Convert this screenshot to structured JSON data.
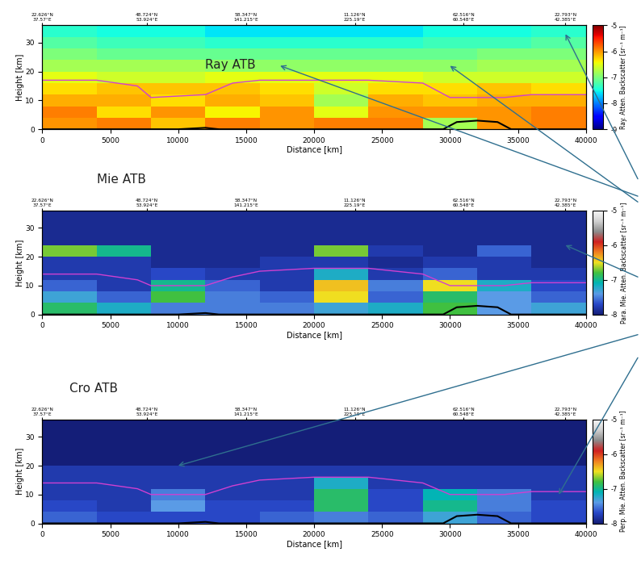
{
  "chart_data": [
    {
      "type": "heatmap",
      "title": "Ray ATB",
      "xlabel": "Distance [km]",
      "ylabel": "Height [km]",
      "xlim": [
        0,
        40000
      ],
      "xticks": [
        0,
        5000,
        10000,
        15000,
        20000,
        25000,
        30000,
        35000,
        40000
      ],
      "ylim": [
        0,
        36
      ],
      "yticks": [
        0,
        10,
        20,
        30
      ],
      "top_ticks": [
        {
          "value": 0,
          "label": "22.626°N\n37.57°E"
        },
        {
          "value": 7700,
          "label": "48.724°N\n53.924°E"
        },
        {
          "value": 15000,
          "label": "58.347°N\n141.215°E"
        },
        {
          "value": 23000,
          "label": "11.126°N\n225.19°E"
        },
        {
          "value": 31000,
          "label": "62.516°N\n60.548°E"
        },
        {
          "value": 38500,
          "label": "22.793°N\n42.385°E"
        }
      ],
      "x_edges": [
        0,
        4000,
        8000,
        12000,
        16000,
        20000,
        24000,
        28000,
        32000,
        36000,
        40000
      ],
      "y_edges": [
        0,
        4,
        8,
        12,
        16,
        20,
        24,
        28,
        32,
        36
      ],
      "cells": [
        [
          -6.0,
          -5.9,
          -6.2,
          -5.9,
          -6.0,
          -5.9,
          -5.9,
          -6.8,
          -6.0,
          -5.9
        ],
        [
          -5.9,
          -6.3,
          -6.0,
          -6.4,
          -6.0,
          -6.5,
          -6.0,
          -6.0,
          -6.0,
          -5.9
        ],
        [
          -6.1,
          -6.1,
          -6.3,
          -6.1,
          -6.2,
          -6.8,
          -6.1,
          -6.2,
          -6.1,
          -6.1
        ],
        [
          -6.3,
          -6.2,
          -6.2,
          -6.2,
          -6.3,
          -6.6,
          -6.3,
          -6.3,
          -6.2,
          -6.3
        ],
        [
          -6.5,
          -6.6,
          -6.6,
          -6.5,
          -6.5,
          -6.5,
          -6.5,
          -6.6,
          -6.6,
          -6.6
        ],
        [
          -6.8,
          -6.8,
          -6.8,
          -6.9,
          -6.9,
          -6.9,
          -6.9,
          -6.9,
          -6.8,
          -6.8
        ],
        [
          -7.0,
          -7.1,
          -7.1,
          -7.1,
          -7.1,
          -7.1,
          -7.1,
          -7.1,
          -7.0,
          -7.0
        ],
        [
          -7.2,
          -7.3,
          -7.3,
          -7.4,
          -7.4,
          -7.4,
          -7.4,
          -7.3,
          -7.3,
          -7.2
        ],
        [
          -7.4,
          -7.5,
          -7.5,
          -7.6,
          -7.6,
          -7.6,
          -7.6,
          -7.5,
          -7.5,
          -7.4
        ]
      ],
      "colorbar": {
        "label": "Ray. Atten. Backscatter [sr⁻¹ m⁻¹]",
        "range": [
          -9,
          -5
        ],
        "ticks": [
          -9,
          -8,
          -7,
          -6,
          -5
        ]
      },
      "tropopause": {
        "x": [
          0,
          4000,
          7000,
          8000,
          12000,
          14000,
          16000,
          20000,
          24000,
          28000,
          30000,
          34000,
          36000,
          40000
        ],
        "y": [
          17,
          17,
          15,
          11,
          12,
          16,
          17,
          17,
          17,
          16,
          11,
          11,
          12,
          12
        ],
        "color": "#d040d0"
      },
      "surface": {
        "x": [
          0,
          10000,
          12000,
          13000,
          29500,
          30500,
          32000,
          33500,
          34500,
          40000
        ],
        "y": [
          0,
          0,
          0.5,
          0,
          0,
          2.5,
          3,
          2.5,
          0,
          0
        ],
        "color": "#000000"
      }
    },
    {
      "type": "heatmap",
      "title": "Mie ATB",
      "xlabel": "Distance [km]",
      "ylabel": "Height [km]",
      "xlim": [
        0,
        40000
      ],
      "xticks": [
        0,
        5000,
        10000,
        15000,
        20000,
        25000,
        30000,
        35000,
        40000
      ],
      "ylim": [
        0,
        36
      ],
      "yticks": [
        0,
        10,
        20,
        30
      ],
      "top_ticks": [
        {
          "value": 0,
          "label": "22.626°N\n37.57°E"
        },
        {
          "value": 7700,
          "label": "48.724°N\n53.924°E"
        },
        {
          "value": 15000,
          "label": "58.347°N\n141.215°E"
        },
        {
          "value": 23000,
          "label": "11.126°N\n225.19°E"
        },
        {
          "value": 31000,
          "label": "62.516°N\n60.548°E"
        },
        {
          "value": 38500,
          "label": "22.793°N\n42.385°E"
        }
      ],
      "x_edges": [
        0,
        4000,
        8000,
        12000,
        16000,
        20000,
        24000,
        28000,
        32000,
        36000,
        40000
      ],
      "y_edges": [
        0,
        4,
        8,
        12,
        16,
        20,
        24,
        28,
        32,
        36
      ],
      "cells": [
        [
          -6.9,
          -7.2,
          -7.5,
          -7.5,
          -7.5,
          -7.3,
          -7.2,
          -6.8,
          -7.4,
          -7.3
        ],
        [
          -7.3,
          -7.6,
          -6.8,
          -7.5,
          -7.6,
          -6.5,
          -7.6,
          -6.9,
          -7.4,
          -7.6
        ],
        [
          -7.6,
          -7.8,
          -7.0,
          -7.6,
          -7.8,
          -6.4,
          -7.5,
          -6.5,
          -7.2,
          -7.7
        ],
        [
          -7.8,
          -7.8,
          -7.7,
          -7.8,
          -7.8,
          -7.2,
          -7.8,
          -7.6,
          -7.8,
          -7.8
        ],
        [
          -7.8,
          -7.8,
          -7.9,
          -7.9,
          -7.8,
          -7.8,
          -7.9,
          -7.8,
          -7.8,
          -7.9
        ],
        [
          -6.7,
          -7.0,
          -7.9,
          -7.9,
          -7.9,
          -6.7,
          -7.8,
          -7.9,
          -7.6,
          -7.9
        ],
        [
          -7.9,
          -7.9,
          -7.9,
          -7.9,
          -7.9,
          -7.9,
          -7.9,
          -7.9,
          -7.9,
          -7.9
        ],
        [
          -7.9,
          -7.9,
          -7.9,
          -7.9,
          -7.9,
          -7.9,
          -7.9,
          -7.9,
          -7.9,
          -7.9
        ],
        [
          -7.9,
          -7.9,
          -7.9,
          -7.9,
          -7.9,
          -7.9,
          -7.9,
          -7.9,
          -7.9,
          -7.9
        ]
      ],
      "colorbar": {
        "label": "Para. Mie. Atten. Backscatter [sr⁻¹ m⁻¹]",
        "range": [
          -8,
          -5
        ],
        "ticks": [
          -8,
          -7,
          -6,
          -5
        ]
      },
      "tropopause": {
        "x": [
          0,
          4000,
          7000,
          8000,
          12000,
          14000,
          16000,
          20000,
          24000,
          28000,
          30000,
          34000,
          36000,
          40000
        ],
        "y": [
          14,
          14,
          12,
          10,
          10,
          13,
          15,
          16,
          16,
          14,
          10,
          10,
          11,
          11
        ],
        "color": "#d040d0"
      },
      "surface": {
        "x": [
          0,
          10000,
          12000,
          13000,
          29500,
          30500,
          32000,
          33500,
          34500,
          40000
        ],
        "y": [
          0,
          0,
          0.5,
          0,
          0,
          2.5,
          3,
          2.5,
          0,
          0
        ],
        "color": "#000000"
      }
    },
    {
      "type": "heatmap",
      "title": "Cro ATB",
      "xlabel": "Distance [km]",
      "ylabel": "Height [km]",
      "xlim": [
        0,
        40000
      ],
      "xticks": [
        0,
        5000,
        10000,
        15000,
        20000,
        25000,
        30000,
        35000,
        40000
      ],
      "ylim": [
        0,
        36
      ],
      "yticks": [
        0,
        10,
        20,
        30
      ],
      "top_ticks": [
        {
          "value": 0,
          "label": "22.626°N\n37.57°E"
        },
        {
          "value": 7700,
          "label": "48.724°N\n53.924°E"
        },
        {
          "value": 15000,
          "label": "58.347°N\n141.215°E"
        },
        {
          "value": 23000,
          "label": "11.126°N\n225.19°E"
        },
        {
          "value": 31000,
          "label": "62.516°N\n60.548°E"
        },
        {
          "value": 38500,
          "label": "22.793°N\n42.385°E"
        }
      ],
      "x_edges": [
        0,
        4000,
        8000,
        12000,
        16000,
        20000,
        24000,
        28000,
        32000,
        36000,
        40000
      ],
      "y_edges": [
        0,
        4,
        8,
        12,
        16,
        20,
        24,
        28,
        32,
        36
      ],
      "cells": [
        [
          -7.6,
          -7.7,
          -7.7,
          -7.7,
          -7.6,
          -7.5,
          -7.6,
          -7.3,
          -7.6,
          -7.7
        ],
        [
          -7.7,
          -7.8,
          -7.4,
          -7.7,
          -7.7,
          -6.9,
          -7.7,
          -7.0,
          -7.5,
          -7.7
        ],
        [
          -7.8,
          -7.8,
          -7.5,
          -7.8,
          -7.8,
          -6.9,
          -7.7,
          -7.1,
          -7.5,
          -7.8
        ],
        [
          -7.8,
          -7.8,
          -7.8,
          -7.8,
          -7.8,
          -7.2,
          -7.8,
          -7.8,
          -7.8,
          -7.8
        ],
        [
          -7.8,
          -7.8,
          -7.8,
          -7.8,
          -7.8,
          -7.8,
          -7.8,
          -7.8,
          -7.8,
          -7.8
        ],
        [
          -8.0,
          -8.0,
          -8.0,
          -8.0,
          -8.0,
          -8.0,
          -8.0,
          -8.0,
          -8.0,
          -8.0
        ],
        [
          -8.0,
          -8.0,
          -8.0,
          -8.0,
          -8.0,
          -8.0,
          -8.0,
          -8.0,
          -8.0,
          -8.0
        ],
        [
          -8.0,
          -8.0,
          -8.0,
          -8.0,
          -8.0,
          -8.0,
          -8.0,
          -8.0,
          -8.0,
          -8.0
        ],
        [
          -8.0,
          -8.0,
          -8.0,
          -8.0,
          -8.0,
          -8.0,
          -8.0,
          -8.0,
          -8.0,
          -8.0
        ]
      ],
      "colorbar": {
        "label": "Perp. Mie. Atten. Backscatter [sr⁻¹ m⁻¹]",
        "range": [
          -8,
          -5
        ],
        "ticks": [
          -8,
          -7,
          -6,
          -5
        ]
      },
      "tropopause": {
        "x": [
          0,
          4000,
          7000,
          8000,
          12000,
          14000,
          16000,
          20000,
          24000,
          28000,
          30000,
          34000,
          36000,
          40000
        ],
        "y": [
          14,
          14,
          12,
          10,
          10,
          13,
          15,
          16,
          16,
          14,
          10,
          10,
          11,
          11
        ],
        "color": "#d040d0"
      },
      "surface": {
        "x": [
          0,
          10000,
          12000,
          13000,
          29500,
          30500,
          32000,
          33500,
          34500,
          40000
        ],
        "y": [
          0,
          0,
          0.5,
          0,
          0,
          2.5,
          3,
          2.5,
          0,
          0
        ],
        "color": "#000000"
      }
    }
  ]
}
